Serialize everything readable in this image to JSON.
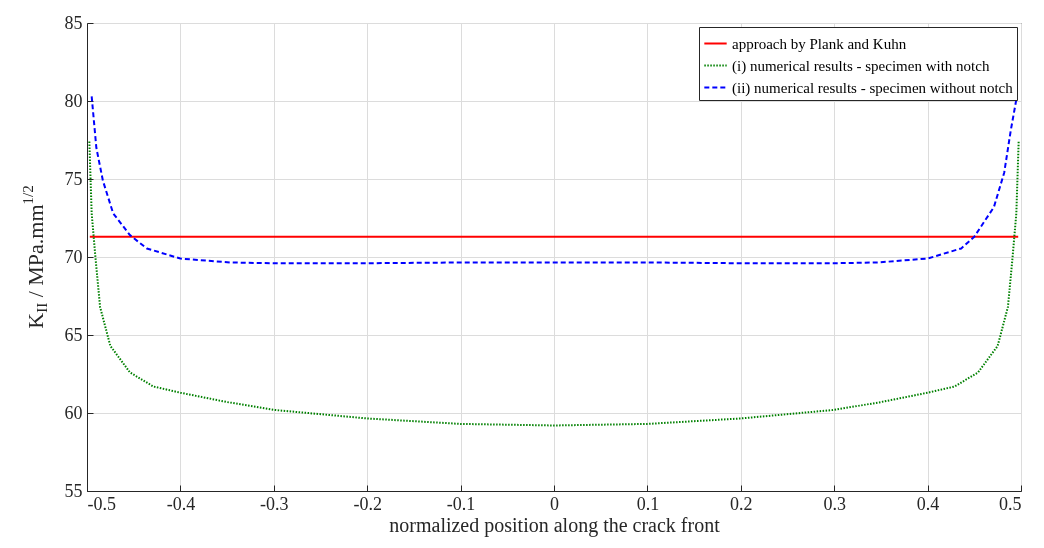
{
  "chart_data": {
    "type": "line",
    "xlabel": "normalized position along the crack front",
    "ylabel": "K$_{II}$ / MPa.mm$^{1/2}$",
    "xlim": [
      -0.5,
      0.5
    ],
    "xticks": [
      -0.5,
      -0.4,
      -0.3,
      -0.2,
      -0.1,
      0,
      0.1,
      0.2,
      0.3,
      0.4,
      0.5
    ],
    "ylim": [
      55,
      85
    ],
    "yticks": [
      55,
      60,
      65,
      70,
      75,
      80,
      85
    ],
    "grid": true,
    "legend": "top right",
    "series": [
      {
        "name": "approach by Plank and Kuhn",
        "color": "#ff0000",
        "line_style": "solid",
        "x": [
          -0.497,
          0.497
        ],
        "values": [
          71.3,
          71.3
        ]
      },
      {
        "name": "(i) numerical results - specimen with notch",
        "color": "#008000",
        "line_style": "dotted",
        "x": [
          -0.4975,
          -0.495,
          -0.491,
          -0.486,
          -0.475,
          -0.454,
          -0.429,
          -0.4,
          -0.35,
          -0.3,
          -0.2,
          -0.1,
          0,
          0.1,
          0.2,
          0.3,
          0.35,
          0.4,
          0.429,
          0.454,
          0.475,
          0.486,
          0.491,
          0.495,
          0.4975
        ],
        "values": [
          77.4,
          72.8,
          70.0,
          66.8,
          64.3,
          62.6,
          61.7,
          61.3,
          60.7,
          60.2,
          59.65,
          59.3,
          59.2,
          59.3,
          59.65,
          60.2,
          60.7,
          61.3,
          61.7,
          62.6,
          64.3,
          66.8,
          70.0,
          72.8,
          77.4
        ]
      },
      {
        "name": "(ii) numerical results - specimen without notch",
        "color": "#0000ff",
        "line_style": "dashed",
        "x": [
          -0.495,
          -0.49,
          -0.483,
          -0.472,
          -0.454,
          -0.436,
          -0.4,
          -0.347,
          -0.3,
          -0.2,
          -0.1,
          0,
          0.1,
          0.2,
          0.3,
          0.347,
          0.4,
          0.436,
          0.45,
          0.471,
          0.482,
          0.489,
          0.495
        ],
        "values": [
          80.3,
          77.0,
          74.9,
          72.8,
          71.4,
          70.55,
          69.9,
          69.65,
          69.6,
          69.6,
          69.65,
          69.65,
          69.65,
          69.6,
          69.6,
          69.65,
          69.9,
          70.55,
          71.3,
          73.2,
          75.4,
          78.1,
          80.1
        ]
      }
    ]
  }
}
